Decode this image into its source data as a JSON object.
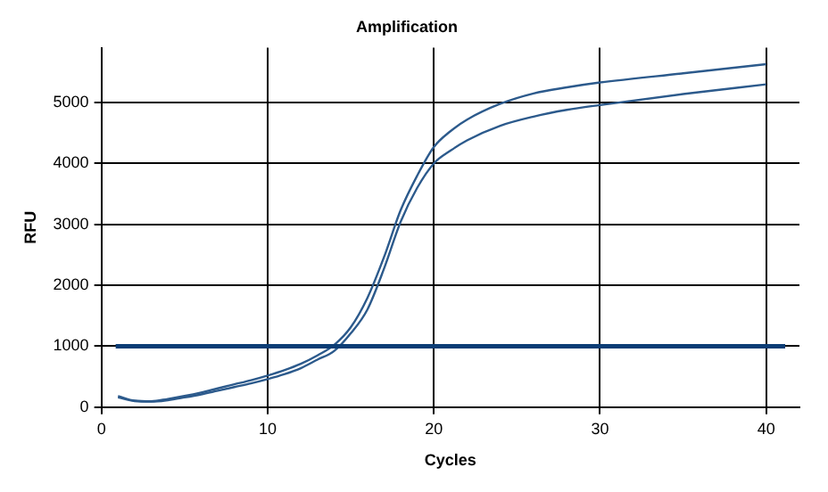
{
  "chart_data": {
    "type": "line",
    "title": "Amplification",
    "xlabel": "Cycles",
    "ylabel": "RFU",
    "x": [
      1,
      2,
      3,
      4,
      5,
      6,
      7,
      8,
      9,
      10,
      11,
      12,
      13,
      14,
      15,
      16,
      17,
      18,
      19,
      20,
      21,
      22,
      24,
      26,
      28,
      30,
      35,
      40
    ],
    "series": [
      {
        "color": "#2c5a8c",
        "values": [
          183,
          106,
          96,
          135,
          183,
          240,
          308,
          375,
          442,
          519,
          606,
          712,
          850,
          1020,
          1310,
          1790,
          2460,
          3230,
          3800,
          4270,
          4530,
          4720,
          4980,
          5150,
          5250,
          5330,
          5480,
          5630
        ]
      },
      {
        "color": "#2c5a8c",
        "values": [
          160,
          100,
          90,
          115,
          160,
          210,
          270,
          330,
          390,
          460,
          540,
          640,
          780,
          920,
          1210,
          1600,
          2270,
          3040,
          3600,
          4000,
          4210,
          4380,
          4620,
          4770,
          4880,
          4960,
          5140,
          5300
        ]
      }
    ],
    "xlim": [
      0,
      42
    ],
    "ylim": [
      0,
      5900
    ],
    "xticks": [
      0,
      10,
      20,
      30,
      40
    ],
    "yticks": [
      0,
      1000,
      2000,
      3000,
      4000,
      5000
    ],
    "grid": true,
    "legend": false,
    "marker": "none",
    "line_style": "solid",
    "ref_lines": [
      {
        "axis": "y",
        "value": 1000,
        "color": "#0b3d75"
      }
    ]
  }
}
